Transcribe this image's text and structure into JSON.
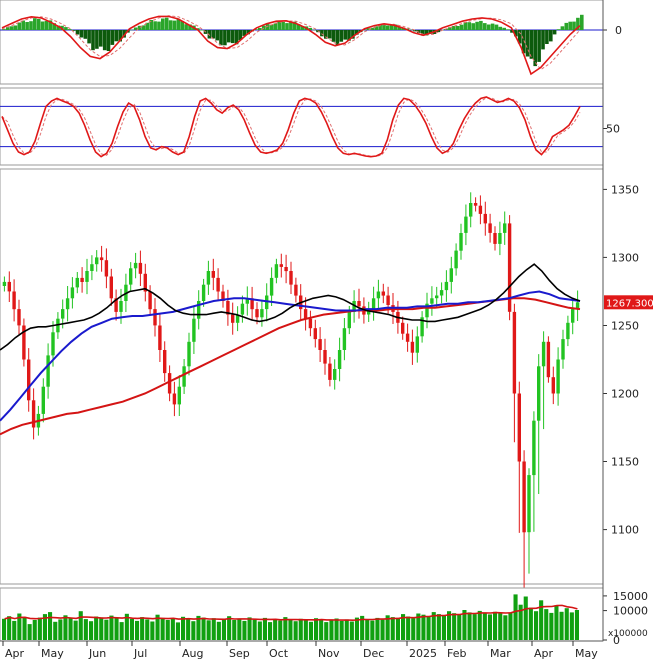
{
  "chart_data": [
    {
      "type": "bar",
      "panel": "macd-histogram",
      "yticks": [
        "0"
      ],
      "ylim": [
        -1,
        1
      ],
      "histogram_env": [
        0.05,
        0.25,
        0.45,
        0.55,
        0.55,
        0.4,
        0.2,
        0.0,
        -0.2,
        -0.45,
        -0.55,
        -0.45,
        -0.25,
        0.0,
        0.25,
        0.45,
        0.55,
        0.6,
        0.5,
        0.3,
        0.05,
        -0.2,
        -0.35,
        -0.4,
        -0.3,
        -0.1,
        0.1,
        0.3,
        0.4,
        0.45,
        0.35,
        0.15,
        -0.05,
        -0.25,
        -0.35,
        -0.3,
        -0.15,
        0.05,
        0.2,
        0.3,
        0.25,
        0.1,
        -0.05,
        -0.15,
        -0.1,
        0.05,
        0.2,
        0.35,
        0.45,
        0.4,
        0.3,
        0.15,
        -0.1,
        -0.5,
        -1.0,
        -0.6,
        -0.2,
        0.2,
        0.5,
        0.7
      ],
      "macd_line": [
        0.1,
        0.3,
        0.5,
        0.6,
        0.55,
        0.35,
        0.1,
        -0.15,
        -0.4,
        -0.6,
        -0.65,
        -0.5,
        -0.25,
        0.05,
        0.3,
        0.5,
        0.62,
        0.62,
        0.5,
        0.25,
        0.0,
        -0.25,
        -0.4,
        -0.42,
        -0.3,
        -0.1,
        0.1,
        0.28,
        0.4,
        0.42,
        0.3,
        0.1,
        -0.1,
        -0.28,
        -0.36,
        -0.3,
        -0.12,
        0.06,
        0.2,
        0.28,
        0.22,
        0.08,
        -0.06,
        -0.12,
        -0.05,
        0.1,
        0.25,
        0.4,
        0.5,
        0.55,
        0.5,
        0.35,
        0.1,
        -0.4,
        -1.0,
        -0.85,
        -0.6,
        -0.35,
        -0.1,
        0.2
      ],
      "signal_line": [
        0.05,
        0.2,
        0.4,
        0.55,
        0.6,
        0.5,
        0.3,
        0.05,
        -0.2,
        -0.45,
        -0.6,
        -0.58,
        -0.42,
        -0.18,
        0.1,
        0.35,
        0.55,
        0.65,
        0.6,
        0.42,
        0.18,
        -0.08,
        -0.3,
        -0.42,
        -0.4,
        -0.25,
        -0.05,
        0.15,
        0.32,
        0.42,
        0.4,
        0.25,
        0.05,
        -0.15,
        -0.3,
        -0.34,
        -0.22,
        -0.04,
        0.12,
        0.24,
        0.26,
        0.16,
        0.02,
        -0.1,
        -0.1,
        0.0,
        0.15,
        0.3,
        0.44,
        0.52,
        0.54,
        0.46,
        0.28,
        -0.1,
        -0.6,
        -0.9,
        -0.75,
        -0.5,
        -0.25,
        0.0
      ]
    },
    {
      "type": "line",
      "panel": "oscillator",
      "yticks": [
        "50"
      ],
      "ylim": [
        0,
        100
      ],
      "hlines": [
        80,
        20
      ],
      "series": [
        {
          "values": [
            65,
            45,
            25,
            12,
            8,
            12,
            28,
            55,
            80,
            88,
            92,
            88,
            85,
            80,
            70,
            52,
            30,
            12,
            5,
            10,
            25,
            50,
            72,
            85,
            80,
            60,
            35,
            18,
            15,
            20,
            18,
            12,
            8,
            12,
            35,
            65,
            88,
            92,
            85,
            75,
            70,
            78,
            82,
            75,
            60,
            40,
            22,
            12,
            10,
            12,
            15,
            25,
            45,
            70,
            88,
            92,
            90,
            85,
            72,
            55,
            35,
            18,
            10,
            8,
            10,
            8,
            6,
            5,
            6,
            10,
            30,
            60,
            82,
            92,
            90,
            82,
            70,
            55,
            35,
            18,
            10,
            14,
            25,
            45,
            62,
            75,
            85,
            92,
            94,
            90,
            86,
            88,
            92,
            88,
            78,
            60,
            35,
            15,
            8,
            18,
            35,
            40,
            45,
            52,
            65,
            80
          ]
        }
      ]
    },
    {
      "type": "line",
      "panel": "price",
      "x_axis_labels": [
        "Apr",
        "May",
        "Jun",
        "Jul",
        "Aug",
        "Sep",
        "Oct",
        "Nov",
        "Dec",
        "2025",
        "Feb",
        "Mar",
        "Apr",
        "May"
      ],
      "yticks": [
        "1350",
        "1300",
        "1250",
        "1200",
        "1150",
        "1100"
      ],
      "ylim": [
        1060,
        1365
      ],
      "last_price_label": "1267.300",
      "price": [
        1282,
        1275,
        1262,
        1250,
        1225,
        1195,
        1175,
        1185,
        1205,
        1228,
        1245,
        1255,
        1262,
        1270,
        1278,
        1285,
        1282,
        1290,
        1295,
        1300,
        1298,
        1286,
        1270,
        1260,
        1268,
        1280,
        1292,
        1296,
        1288,
        1275,
        1262,
        1250,
        1232,
        1215,
        1200,
        1192,
        1205,
        1220,
        1238,
        1255,
        1268,
        1280,
        1290,
        1285,
        1275,
        1268,
        1258,
        1252,
        1258,
        1266,
        1270,
        1262,
        1256,
        1262,
        1272,
        1285,
        1295,
        1293,
        1290,
        1280,
        1272,
        1262,
        1255,
        1248,
        1240,
        1232,
        1222,
        1210,
        1218,
        1232,
        1248,
        1260,
        1268,
        1264,
        1258,
        1262,
        1270,
        1275,
        1272,
        1265,
        1260,
        1252,
        1244,
        1238,
        1230,
        1242,
        1256,
        1266,
        1270,
        1272,
        1276,
        1282,
        1292,
        1305,
        1318,
        1330,
        1340,
        1338,
        1332,
        1325,
        1318,
        1310,
        1318,
        1325,
        1260,
        1200,
        1150,
        1098,
        1140,
        1180,
        1220,
        1238,
        1212,
        1200,
        1225,
        1240,
        1252,
        1262,
        1267
      ],
      "ma_black": [
        1232,
        1236,
        1241,
        1245,
        1248,
        1249,
        1249,
        1250,
        1251,
        1252,
        1253,
        1254,
        1256,
        1259,
        1263,
        1268,
        1272,
        1275,
        1276,
        1277,
        1274,
        1270,
        1265,
        1261,
        1259,
        1258,
        1258,
        1258,
        1259,
        1260,
        1259,
        1258,
        1256,
        1254,
        1253,
        1254,
        1256,
        1259,
        1263,
        1266,
        1268,
        1270,
        1271,
        1272,
        1271,
        1269,
        1266,
        1263,
        1261,
        1260,
        1259,
        1258,
        1256,
        1255,
        1254,
        1254,
        1253,
        1253,
        1254,
        1255,
        1256,
        1258,
        1260,
        1262,
        1265,
        1269,
        1274,
        1280,
        1286,
        1291,
        1295,
        1290,
        1283,
        1277,
        1273,
        1270,
        1268
      ],
      "ma_blue": [
        1180,
        1188,
        1197,
        1206,
        1215,
        1223,
        1231,
        1238,
        1244,
        1249,
        1252,
        1255,
        1256,
        1257,
        1257,
        1258,
        1259,
        1260,
        1262,
        1264,
        1266,
        1268,
        1269,
        1270,
        1270,
        1269,
        1268,
        1267,
        1266,
        1265,
        1264,
        1263,
        1262,
        1261,
        1261,
        1261,
        1262,
        1262,
        1263,
        1263,
        1263,
        1264,
        1264,
        1265,
        1266,
        1266,
        1267,
        1267,
        1268,
        1269,
        1270,
        1272,
        1274,
        1275,
        1273,
        1270,
        1269,
        1268
      ],
      "ma_red": [
        1170,
        1174,
        1177,
        1179,
        1181,
        1183,
        1185,
        1186,
        1188,
        1190,
        1192,
        1194,
        1197,
        1200,
        1204,
        1208,
        1212,
        1216,
        1220,
        1224,
        1228,
        1232,
        1236,
        1240,
        1244,
        1248,
        1251,
        1254,
        1256,
        1258,
        1259,
        1260,
        1261,
        1261,
        1261,
        1262,
        1262,
        1262,
        1263,
        1263,
        1264,
        1265,
        1266,
        1267,
        1268,
        1269,
        1270,
        1270,
        1269,
        1267,
        1265,
        1263,
        1262
      ]
    },
    {
      "type": "bar",
      "panel": "volume",
      "yticks": [
        "15000",
        "10000",
        "0"
      ],
      "unit_label": "x100000",
      "ylim": [
        0,
        17000
      ],
      "volume": [
        7200,
        8100,
        6500,
        9000,
        7800,
        5400,
        6800,
        7600,
        8800,
        9500,
        6200,
        7000,
        8400,
        7300,
        6600,
        9800,
        7100,
        6400,
        8000,
        7700,
        6900,
        8300,
        7400,
        6100,
        8900,
        7200,
        6500,
        7800,
        7000,
        6300,
        8600,
        7500,
        6800,
        7300,
        6000,
        7900,
        7100,
        6400,
        8200,
        7600,
        6700,
        7400,
        6200,
        7000,
        8100,
        6800,
        7300,
        6500,
        7700,
        6900,
        6300,
        7500,
        6100,
        7100,
        6600,
        7800,
        7000,
        6400,
        7200,
        6700,
        6200,
        7400,
        6800,
        6100,
        6900,
        7300,
        6500,
        7000,
        6300,
        7600,
        8200,
        7100,
        6600,
        7500,
        6900,
        8400,
        7800,
        7200,
        8800,
        8000,
        7400,
        9000,
        8600,
        7900,
        9500,
        8800,
        8200,
        9800,
        9100,
        8500,
        10200,
        9400,
        8800,
        9900,
        9300,
        8700,
        9600,
        9000,
        8400,
        9200,
        15500,
        12000,
        14800,
        11000,
        9800,
        13500,
        10500,
        9200,
        11800,
        9600,
        10800,
        9400,
        10200
      ]
    }
  ]
}
